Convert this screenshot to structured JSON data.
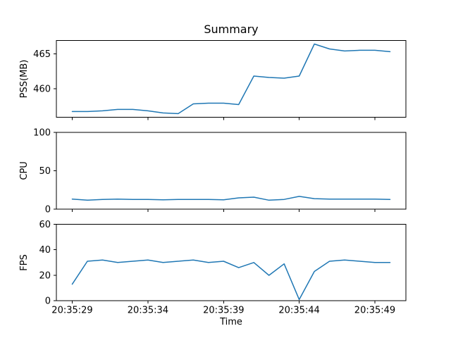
{
  "figure": {
    "title": "Summary",
    "xlabel": "Time",
    "line_color": "#1f77b4",
    "background_color": "#ffffff",
    "text_color": "#000000",
    "spine_color": "#000000"
  },
  "x_axis": {
    "tick_labels": [
      "20:35:29",
      "20:35:34",
      "20:35:39",
      "20:35:44",
      "20:35:49"
    ],
    "tick_values": [
      29,
      34,
      39,
      44,
      49
    ],
    "xlim": [
      27.95,
      51.05
    ],
    "x_values": [
      29,
      30,
      31,
      32,
      33,
      34,
      35,
      36,
      37,
      38,
      39,
      40,
      41,
      42,
      43,
      44,
      45,
      46,
      47,
      48,
      49,
      50
    ]
  },
  "chart_data": [
    {
      "type": "line",
      "series_name": "PSS(MB)",
      "ylabel": "PSS(MB)",
      "ylim": [
        455.9,
        466.9
      ],
      "yticks": [
        460,
        465
      ],
      "ytick_labels": [
        "460",
        "465"
      ],
      "values": [
        456.7,
        456.7,
        456.8,
        457.0,
        457.0,
        456.8,
        456.5,
        456.4,
        457.8,
        457.9,
        457.9,
        457.7,
        461.8,
        461.6,
        461.5,
        461.8,
        466.4,
        465.7,
        465.4,
        465.5,
        465.5,
        465.3
      ]
    },
    {
      "type": "line",
      "series_name": "CPU",
      "ylabel": "CPU",
      "ylim": [
        0,
        100
      ],
      "yticks": [
        0,
        50,
        100
      ],
      "ytick_labels": [
        "0",
        "50",
        "100"
      ],
      "values": [
        13,
        11.5,
        12.5,
        13,
        12.5,
        12.5,
        12,
        12.5,
        12.5,
        12.5,
        12,
        14.5,
        15.5,
        11.5,
        12.5,
        16.5,
        13.5,
        13,
        13,
        13,
        13,
        12.5
      ]
    },
    {
      "type": "line",
      "series_name": "FPS",
      "ylabel": "FPS",
      "ylim": [
        0,
        60
      ],
      "yticks": [
        0,
        20,
        40,
        60
      ],
      "ytick_labels": [
        "0",
        "20",
        "40",
        "60"
      ],
      "values": [
        13,
        31,
        32,
        30,
        31,
        32,
        30,
        31,
        32,
        30,
        31,
        26,
        30,
        20,
        29,
        1,
        23,
        31,
        32,
        31,
        30,
        30
      ]
    }
  ]
}
